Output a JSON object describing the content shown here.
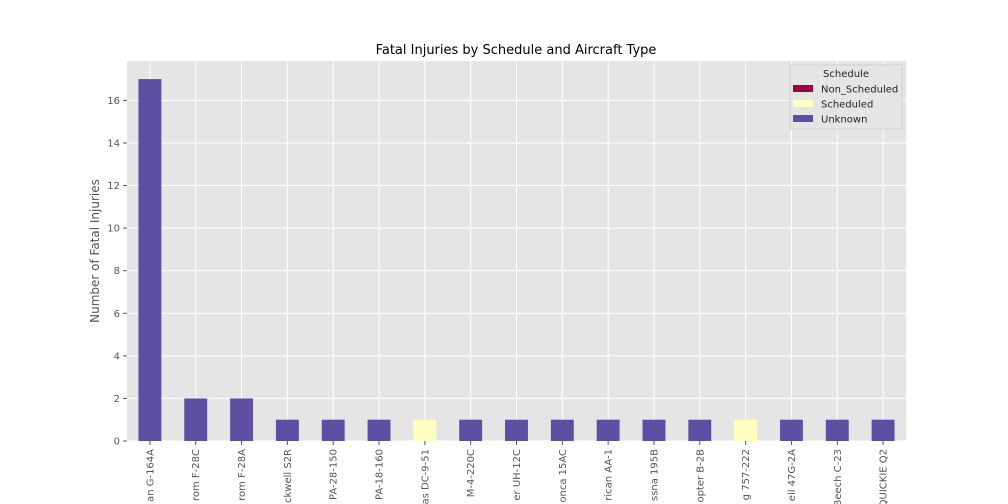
{
  "chart_data": {
    "type": "bar",
    "stacked": true,
    "title": "Fatal Injuries by Schedule and Aircraft Type",
    "xlabel": "",
    "ylabel": "Number of Fatal Injuries",
    "ylim": [
      0,
      17.85
    ],
    "yticks": [
      0,
      2,
      4,
      6,
      8,
      10,
      12,
      14,
      16
    ],
    "grid": true,
    "legend": {
      "title": "Schedule",
      "placement": "top-right"
    },
    "categories": [
      "an G-164A",
      "rom F-28C",
      "rom F-28A",
      "ckwell S2R",
      "PA-28-150",
      "PA-18-160",
      "as DC-9-51",
      "M-4-220C",
      "er UH-12C",
      "onca 15AC",
      "rican AA-1",
      "ssna 195B",
      "opter B-2B",
      "g 757-222",
      "ell 47G-2A",
      "Beech C-23",
      "QUICKIE Q2"
    ],
    "series": [
      {
        "name": "Non_Scheduled",
        "color": "#9e0142",
        "values": [
          0,
          0,
          0,
          0,
          0,
          0,
          0,
          0,
          0,
          0,
          0,
          0,
          0,
          0,
          0,
          0,
          0
        ]
      },
      {
        "name": "Scheduled",
        "color": "#ffffbf",
        "values": [
          0,
          0,
          0,
          0,
          0,
          0,
          1,
          0,
          0,
          0,
          0,
          0,
          0,
          1,
          0,
          0,
          0
        ]
      },
      {
        "name": "Unknown",
        "color": "#5e4fa2",
        "values": [
          17,
          2,
          2,
          1,
          1,
          1,
          0,
          1,
          1,
          1,
          1,
          1,
          1,
          0,
          1,
          1,
          1
        ]
      }
    ]
  }
}
